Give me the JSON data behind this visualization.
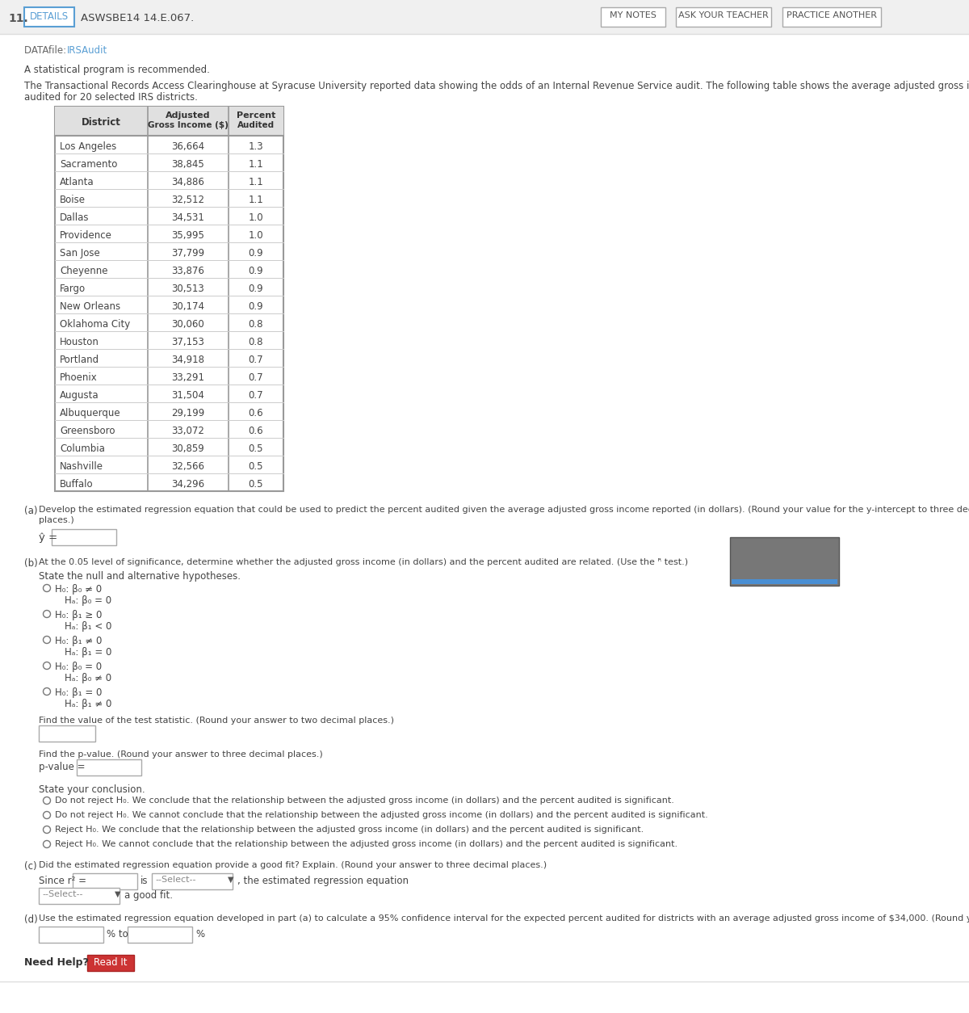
{
  "problem_number": "11.",
  "datafile_link": "IRSAudit",
  "intro2": "The Transactional Records Access Clearinghouse at Syracuse University reported data showing the odds of an Internal Revenue Service audit. The following table shows the average adjusted gross income reported (in dollars) and the percent of the returns that were audited for 20 selected IRS districts.",
  "table_data": [
    [
      "Los Angeles",
      "36,664",
      "1.3"
    ],
    [
      "Sacramento",
      "38,845",
      "1.1"
    ],
    [
      "Atlanta",
      "34,886",
      "1.1"
    ],
    [
      "Boise",
      "32,512",
      "1.1"
    ],
    [
      "Dallas",
      "34,531",
      "1.0"
    ],
    [
      "Providence",
      "35,995",
      "1.0"
    ],
    [
      "San Jose",
      "37,799",
      "0.9"
    ],
    [
      "Cheyenne",
      "33,876",
      "0.9"
    ],
    [
      "Fargo",
      "30,513",
      "0.9"
    ],
    [
      "New Orleans",
      "30,174",
      "0.9"
    ],
    [
      "Oklahoma City",
      "30,060",
      "0.8"
    ],
    [
      "Houston",
      "37,153",
      "0.8"
    ],
    [
      "Portland",
      "34,918",
      "0.7"
    ],
    [
      "Phoenix",
      "33,291",
      "0.7"
    ],
    [
      "Augusta",
      "31,504",
      "0.7"
    ],
    [
      "Albuquerque",
      "29,199",
      "0.6"
    ],
    [
      "Greensboro",
      "33,072",
      "0.6"
    ],
    [
      "Columbia",
      "30,859",
      "0.5"
    ],
    [
      "Nashville",
      "32,566",
      "0.5"
    ],
    [
      "Buffalo",
      "34,296",
      "0.5"
    ]
  ],
  "hypotheses": [
    [
      "H₀: β₀ ≠ 0",
      "Hₐ: β₀ = 0"
    ],
    [
      "H₀: β₁ ≥ 0",
      "Hₐ: β₁ < 0"
    ],
    [
      "H₀: β₁ ≠ 0",
      "Hₐ: β₁ = 0"
    ],
    [
      "H₀: β₀ = 0",
      "Hₐ: β₀ ≠ 0"
    ],
    [
      "H₀: β₁ = 0",
      "Hₐ: β₁ ≠ 0"
    ]
  ],
  "conclusions": [
    "Do not reject H₀. We conclude that the relationship between the adjusted gross income (in dollars) and the percent audited is significant.",
    "Do not reject H₀. We cannot conclude that the relationship between the adjusted gross income (in dollars) and the percent audited is significant.",
    "Reject H₀. We conclude that the relationship between the adjusted gross income (in dollars) and the percent audited is significant.",
    "Reject H₀. We cannot conclude that the relationship between the adjusted gross income (in dollars) and the percent audited is significant."
  ],
  "white": "#ffffff",
  "link_color": "#5a9fd4",
  "header_bg": "#f0f0f0",
  "table_header_bg": "#e0e0e0",
  "timer_bg": "#777777",
  "red_btn": "#cc3333"
}
